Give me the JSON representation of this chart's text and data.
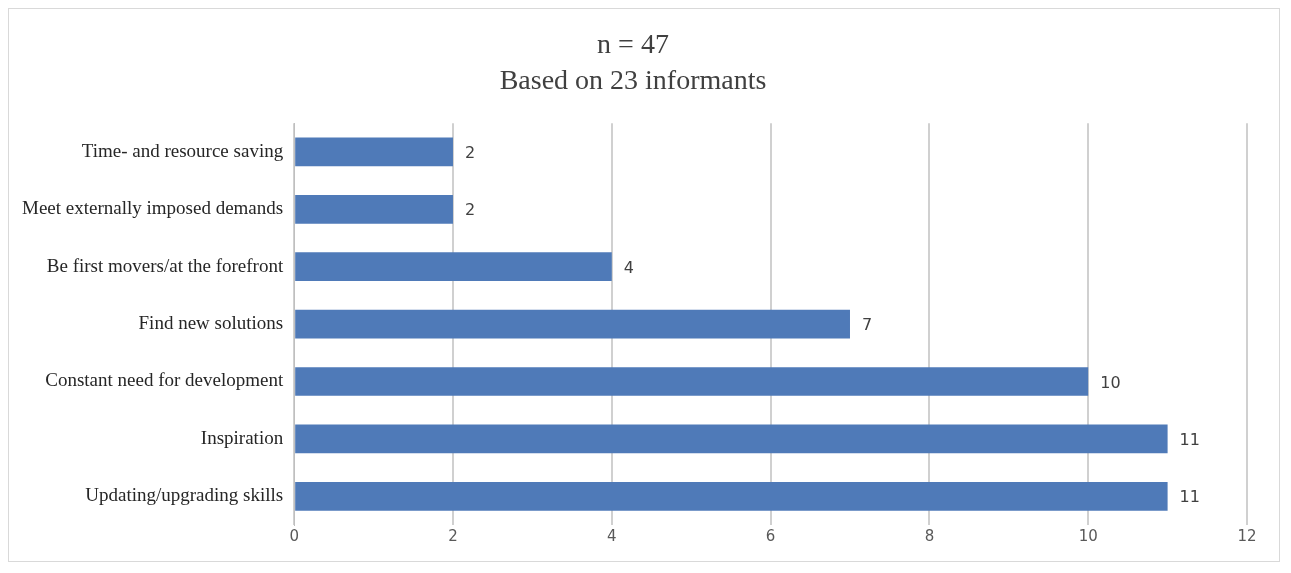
{
  "chart_data": {
    "type": "bar",
    "orientation": "horizontal",
    "title": "n = 47",
    "subtitle": "Based on 23 informants",
    "categories": [
      "Time- and resource saving",
      "Meet externally imposed demands",
      "Be first movers/at the forefront",
      "Find new solutions",
      "Constant need for development",
      "Inspiration",
      "Updating/upgrading skills"
    ],
    "values": [
      2,
      2,
      4,
      7,
      10,
      11,
      11
    ],
    "color": "#4f7ab8",
    "xlim": [
      0,
      12
    ],
    "xticks": [
      0,
      2,
      4,
      6,
      8,
      10,
      12
    ],
    "grid": "x",
    "legend": false,
    "data_labels": true
  }
}
